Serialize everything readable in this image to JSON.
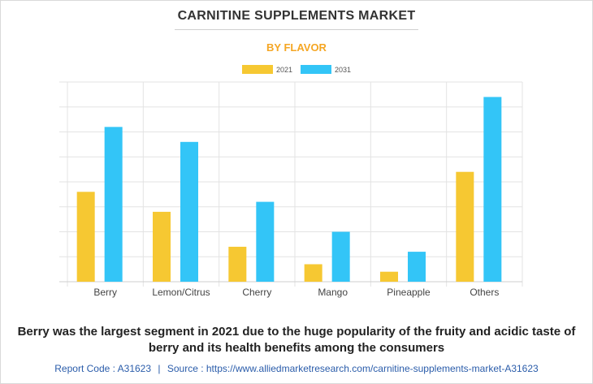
{
  "chart_data": {
    "type": "bar",
    "title": "CARNITINE SUPPLEMENTS MARKET",
    "subtitle": "BY FLAVOR",
    "categories": [
      "Berry",
      "Lemon/Citrus",
      "Cherry",
      "Mango",
      "Pineapple",
      "Others"
    ],
    "series": [
      {
        "name": "2021",
        "color": "#f6c832",
        "values": [
          3.6,
          2.8,
          1.4,
          0.7,
          0.4,
          4.4
        ]
      },
      {
        "name": "2031",
        "color": "#33c5f7",
        "values": [
          6.2,
          5.6,
          3.2,
          2.0,
          1.2,
          7.4
        ]
      }
    ],
    "ylim": [
      0,
      8
    ],
    "grid": true,
    "legend": "top-center"
  },
  "caption": "Berry was the largest segment in 2021 due to the huge popularity of the fruity and acidic taste of berry and its health benefits among the consumers",
  "footer": {
    "report_code": "Report Code : A31623",
    "separator": "|",
    "source": "Source : https://www.alliedmarketresearch.com/carnitine-supplements-market-A31623"
  }
}
